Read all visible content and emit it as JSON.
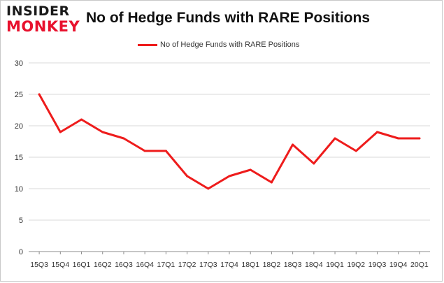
{
  "brand": {
    "line1": "INSIDER",
    "line2": "MONKEY"
  },
  "colors": {
    "series": "#ee1c1c",
    "grid": "#d9d9d9",
    "axis": "#8c8c8c",
    "text": "#333333",
    "logo_dark": "#1a1a1a",
    "logo_red": "#e8112d"
  },
  "chart_data": {
    "type": "line",
    "title": "No of Hedge Funds with RARE Positions",
    "xlabel": "",
    "ylabel": "",
    "ylim": [
      0,
      30
    ],
    "yticks": [
      0,
      5,
      10,
      15,
      20,
      25,
      30
    ],
    "grid": true,
    "legend": "top-center",
    "categories": [
      "15Q3",
      "15Q4",
      "16Q1",
      "16Q2",
      "16Q3",
      "16Q4",
      "17Q1",
      "17Q2",
      "17Q3",
      "17Q4",
      "18Q1",
      "18Q2",
      "18Q3",
      "18Q4",
      "19Q1",
      "19Q2",
      "19Q3",
      "19Q4",
      "20Q1"
    ],
    "series": [
      {
        "name": "No of Hedge Funds with RARE Positions",
        "values": [
          25,
          19,
          21,
          19,
          18,
          16,
          16,
          12,
          10,
          12,
          13,
          11,
          17,
          14,
          18,
          16,
          19,
          18,
          18
        ]
      }
    ]
  }
}
